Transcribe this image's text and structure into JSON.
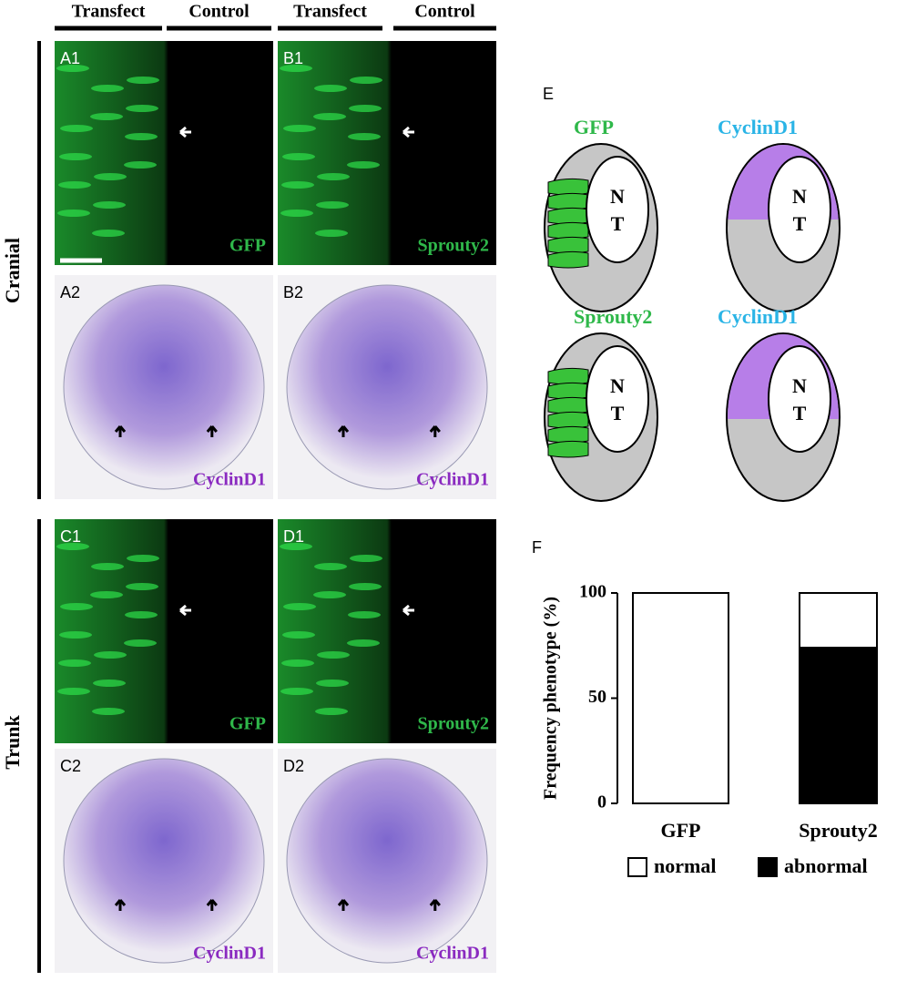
{
  "column_headers": [
    "Transfect",
    "Control",
    "Transfect",
    "Control"
  ],
  "row_labels": [
    "Cranial",
    "Trunk"
  ],
  "panels": [
    {
      "letter": "A1",
      "stain": "GFP"
    },
    {
      "letter": "B1",
      "stain": "Sprouty2"
    },
    {
      "letter": "A2",
      "stain": "CyclinD1"
    },
    {
      "letter": "B2",
      "stain": "CyclinD1"
    },
    {
      "letter": "C1",
      "stain": "GFP"
    },
    {
      "letter": "D1",
      "stain": "Sprouty2"
    },
    {
      "letter": "C2",
      "stain": "CyclinD1"
    },
    {
      "letter": "D2",
      "stain": "CyclinD1"
    }
  ],
  "diagram": {
    "letter": "E",
    "items": [
      {
        "label": "GFP"
      },
      {
        "label": "CyclinD1"
      },
      {
        "label": "Sprouty2"
      },
      {
        "label": "CyclinD1"
      }
    ],
    "lumen_label": [
      "N",
      "T"
    ]
  },
  "chart_data": {
    "type": "stacked_bar",
    "letter": "F",
    "ylabel": "Frequency phenotype (%)",
    "categories": [
      "GFP",
      "Sprouty2"
    ],
    "series": [
      {
        "name": "normal",
        "color": "#ffffff",
        "values": [
          100,
          26
        ]
      },
      {
        "name": "abnormal",
        "color": "#000000",
        "values": [
          0,
          74
        ]
      }
    ],
    "ylim": [
      0,
      100
    ],
    "yticks": [
      0,
      50,
      100
    ],
    "legend": "bottom"
  }
}
